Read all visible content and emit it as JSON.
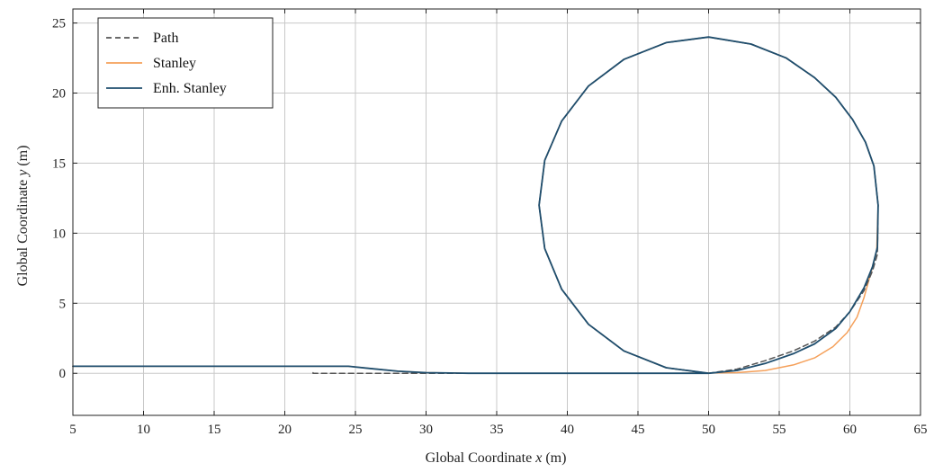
{
  "chart_data": {
    "type": "line",
    "xlabel_pre": "Global Coordinate ",
    "xlabel_var": "x",
    "xlabel_post": " (m)",
    "ylabel_pre": "Global Coordinate ",
    "ylabel_var": "y",
    "ylabel_post": " (m)",
    "xlim": [
      5,
      65
    ],
    "ylim": [
      -3,
      26
    ],
    "xticks": [
      5,
      10,
      15,
      20,
      25,
      30,
      35,
      40,
      45,
      50,
      55,
      60,
      65
    ],
    "yticks": [
      0,
      5,
      10,
      15,
      20,
      25
    ],
    "grid": true,
    "legend_position": "top-left",
    "series": [
      {
        "name": "Path",
        "color": "#555555",
        "dash": "dashed",
        "points": [
          [
            22,
            0.05
          ],
          [
            22,
            0
          ],
          [
            30,
            0
          ],
          [
            40,
            0
          ],
          [
            48,
            0
          ],
          [
            50,
            0
          ],
          [
            52,
            0.3
          ],
          [
            54,
            0.9
          ],
          [
            56,
            1.6
          ],
          [
            57.5,
            2.3
          ],
          [
            59,
            3.3
          ],
          [
            60,
            4.4
          ],
          [
            61,
            5.9
          ],
          [
            61.6,
            7.3
          ],
          [
            61.95,
            8.5
          ],
          [
            62,
            12
          ],
          [
            61.7,
            14.8
          ],
          [
            61.1,
            16.5
          ],
          [
            60.2,
            18.1
          ],
          [
            59,
            19.7
          ],
          [
            57.5,
            21.1
          ],
          [
            55.5,
            22.5
          ],
          [
            53,
            23.5
          ],
          [
            50,
            24
          ],
          [
            47,
            23.6
          ],
          [
            44,
            22.4
          ],
          [
            41.5,
            20.5
          ],
          [
            39.6,
            18
          ],
          [
            38.4,
            15.2
          ],
          [
            38,
            12
          ],
          [
            38.4,
            8.9
          ],
          [
            39.6,
            6
          ],
          [
            41.5,
            3.5
          ],
          [
            44,
            1.6
          ],
          [
            47,
            0.4
          ],
          [
            50,
            0
          ]
        ]
      },
      {
        "name": "Stanley",
        "color": "#f5a05a",
        "dash": "solid",
        "points": [
          [
            5,
            0.5
          ],
          [
            22,
            0.5
          ],
          [
            24.5,
            0.5
          ],
          [
            26,
            0.35
          ],
          [
            28,
            0.15
          ],
          [
            30,
            0.05
          ],
          [
            33,
            0
          ],
          [
            40,
            0
          ],
          [
            48,
            0
          ],
          [
            52,
            0.05
          ],
          [
            54,
            0.2
          ],
          [
            56,
            0.6
          ],
          [
            57.5,
            1.1
          ],
          [
            58.8,
            1.9
          ],
          [
            59.8,
            2.9
          ],
          [
            60.5,
            4
          ],
          [
            61,
            5.4
          ],
          [
            61.5,
            7.2
          ],
          [
            61.9,
            8.7
          ],
          [
            62,
            12
          ],
          [
            61.7,
            14.8
          ],
          [
            61.1,
            16.5
          ],
          [
            60.2,
            18.1
          ],
          [
            59,
            19.7
          ],
          [
            57.5,
            21.1
          ],
          [
            55.5,
            22.5
          ],
          [
            53,
            23.5
          ],
          [
            50,
            24
          ],
          [
            47,
            23.6
          ],
          [
            44,
            22.4
          ],
          [
            41.5,
            20.5
          ],
          [
            39.6,
            18
          ],
          [
            38.4,
            15.2
          ],
          [
            38,
            12
          ],
          [
            38.4,
            8.9
          ],
          [
            39.6,
            6
          ],
          [
            41.5,
            3.5
          ],
          [
            44,
            1.6
          ],
          [
            47,
            0.4
          ],
          [
            50,
            0
          ]
        ]
      },
      {
        "name": "Enh. Stanley",
        "color": "#1f4e6e",
        "dash": "solid",
        "points": [
          [
            5,
            0.5
          ],
          [
            22,
            0.5
          ],
          [
            24.5,
            0.5
          ],
          [
            26,
            0.35
          ],
          [
            28,
            0.15
          ],
          [
            30,
            0.05
          ],
          [
            33,
            0
          ],
          [
            40,
            0
          ],
          [
            48,
            0
          ],
          [
            50,
            0
          ],
          [
            52,
            0.2
          ],
          [
            54,
            0.7
          ],
          [
            56,
            1.4
          ],
          [
            57.5,
            2.1
          ],
          [
            59,
            3.2
          ],
          [
            60,
            4.4
          ],
          [
            61,
            6.1
          ],
          [
            61.6,
            7.6
          ],
          [
            61.95,
            9
          ],
          [
            62,
            12
          ],
          [
            61.7,
            14.8
          ],
          [
            61.1,
            16.5
          ],
          [
            60.2,
            18.1
          ],
          [
            59,
            19.7
          ],
          [
            57.5,
            21.1
          ],
          [
            55.5,
            22.5
          ],
          [
            53,
            23.5
          ],
          [
            50,
            24
          ],
          [
            47,
            23.6
          ],
          [
            44,
            22.4
          ],
          [
            41.5,
            20.5
          ],
          [
            39.6,
            18
          ],
          [
            38.4,
            15.2
          ],
          [
            38,
            12
          ],
          [
            38.4,
            8.9
          ],
          [
            39.6,
            6
          ],
          [
            41.5,
            3.5
          ],
          [
            44,
            1.6
          ],
          [
            47,
            0.4
          ],
          [
            50,
            0
          ]
        ]
      }
    ]
  }
}
